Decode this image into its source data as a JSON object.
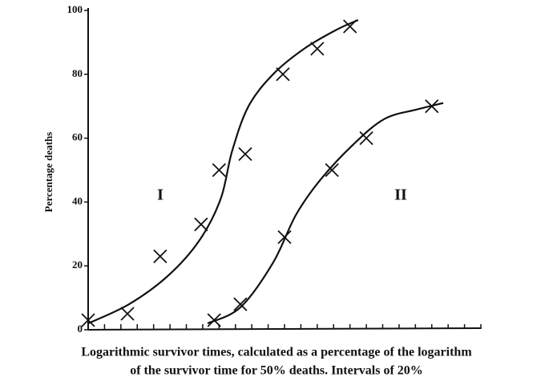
{
  "chart_data": {
    "type": "scatter",
    "y_label": "Percentage deaths",
    "x_label_lines": [
      "Logarithmic survivor times, calculated as a percentage of the logarithm",
      "of the survivor time for 50% deaths.  Intervals of 20%"
    ],
    "xlim": [
      0,
      24
    ],
    "xticks": [
      0,
      1,
      2,
      3,
      4,
      5,
      6,
      7,
      8,
      9,
      10,
      11,
      12,
      13,
      14,
      15,
      16,
      17,
      18,
      19,
      20,
      21,
      22,
      23,
      24
    ],
    "ylim": [
      0,
      100
    ],
    "yticks": [
      0,
      20,
      40,
      60,
      80,
      100
    ],
    "color": "#111111",
    "series": [
      {
        "name": "I",
        "x": [
          0,
          2.4,
          4.4,
          6.9,
          8,
          9.6,
          11.9,
          14,
          16
        ],
        "values": [
          3,
          5,
          23,
          33,
          50,
          55,
          80,
          88,
          95
        ],
        "curve_x": [
          0,
          2.5,
          4.9,
          6.8,
          8.1,
          8.8,
          9.8,
          11.3,
          13.2,
          15.2,
          16.5
        ],
        "curve_y": [
          2,
          8,
          17,
          28,
          41,
          56,
          70,
          80,
          88,
          94,
          97
        ]
      },
      {
        "name": "II",
        "x": [
          7.7,
          9.3,
          12,
          14.9,
          17,
          21
        ],
        "values": [
          3,
          8,
          29,
          50,
          60,
          70
        ],
        "curve_x": [
          7.3,
          9.3,
          11.3,
          12.7,
          14.2,
          16.2,
          18.1,
          20.1,
          21.7
        ],
        "curve_y": [
          2,
          7,
          21,
          36,
          47,
          58,
          66,
          69,
          71
        ]
      }
    ]
  }
}
